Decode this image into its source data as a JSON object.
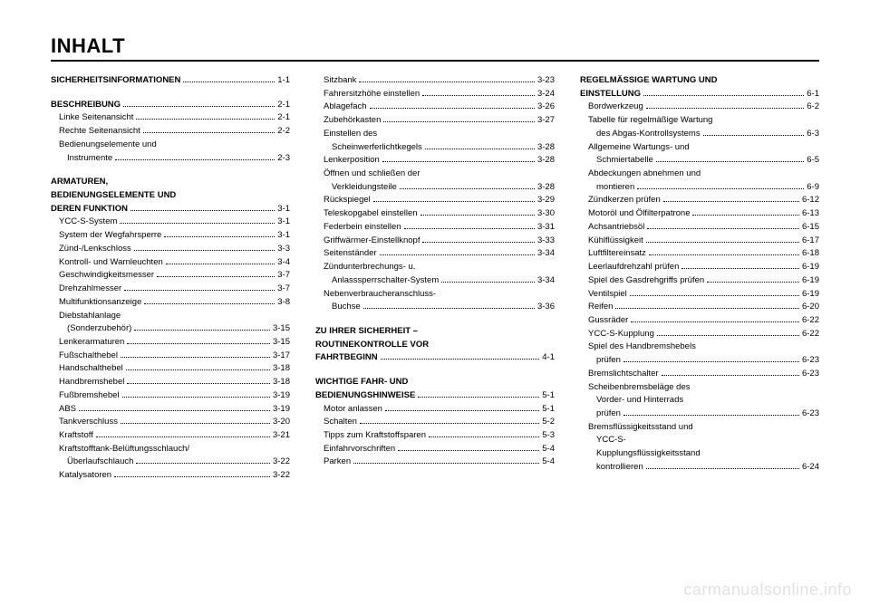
{
  "title": "INHALT",
  "watermark": "carmanualsonline.info",
  "columns": [
    [
      {
        "label": "SICHERHEITSINFORMATIONEN",
        "page": "1-1",
        "bold": true,
        "indent": 0
      },
      {
        "spacer": true
      },
      {
        "label": "BESCHREIBUNG",
        "page": "2-1",
        "bold": true,
        "indent": 0
      },
      {
        "label": "Linke Seitenansicht",
        "page": "2-1",
        "indent": 1
      },
      {
        "label": "Rechte Seitenansicht",
        "page": "2-2",
        "indent": 1
      },
      {
        "label": "Bedienungselemente und",
        "nopage": true,
        "indent": 1
      },
      {
        "label": "Instrumente",
        "page": "2-3",
        "indent": 2
      },
      {
        "spacer": true
      },
      {
        "label": "ARMATUREN,",
        "nopage": true,
        "bold": true,
        "indent": 0
      },
      {
        "label": "BEDIENUNGSELEMENTE UND",
        "nopage": true,
        "bold": true,
        "indent": 0
      },
      {
        "label": "DEREN FUNKTION",
        "page": "3-1",
        "bold": true,
        "indent": 0
      },
      {
        "label": "YCC-S-System",
        "page": "3-1",
        "indent": 1
      },
      {
        "label": "System der Wegfahrsperre",
        "page": "3-1",
        "indent": 1
      },
      {
        "label": "Zünd-/Lenkschloss",
        "page": "3-3",
        "indent": 1
      },
      {
        "label": "Kontroll- und Warnleuchten",
        "page": "3-4",
        "indent": 1
      },
      {
        "label": "Geschwindigkeitsmesser",
        "page": "3-7",
        "indent": 1
      },
      {
        "label": "Drehzahlmesser",
        "page": "3-7",
        "indent": 1
      },
      {
        "label": "Multifunktionsanzeige",
        "page": "3-8",
        "indent": 1
      },
      {
        "label": "Diebstahlanlage",
        "nopage": true,
        "indent": 1
      },
      {
        "label": "(Sonderzubehör)",
        "page": "3-15",
        "indent": 2
      },
      {
        "label": "Lenkerarmaturen",
        "page": "3-15",
        "indent": 1
      },
      {
        "label": "Fußschalthebel",
        "page": "3-17",
        "indent": 1
      },
      {
        "label": "Handschalthebel",
        "page": "3-18",
        "indent": 1
      },
      {
        "label": "Handbremshebel",
        "page": "3-18",
        "indent": 1
      },
      {
        "label": "Fußbremshebel",
        "page": "3-19",
        "indent": 1
      },
      {
        "label": "ABS",
        "page": "3-19",
        "indent": 1
      },
      {
        "label": "Tankverschluss",
        "page": "3-20",
        "indent": 1
      },
      {
        "label": "Kraftstoff",
        "page": "3-21",
        "indent": 1
      },
      {
        "label": "Kraftstofftank-Belüftungsschlauch/",
        "nopage": true,
        "indent": 1
      },
      {
        "label": "Überlaufschlauch",
        "page": "3-22",
        "indent": 2
      },
      {
        "label": "Katalysatoren",
        "page": "3-22",
        "indent": 1
      }
    ],
    [
      {
        "label": "Sitzbank",
        "page": "3-23",
        "indent": 1
      },
      {
        "label": "Fahrersitzhöhe einstellen",
        "page": "3-24",
        "indent": 1
      },
      {
        "label": "Ablagefach",
        "page": "3-26",
        "indent": 1
      },
      {
        "label": "Zubehörkasten",
        "page": "3-27",
        "indent": 1
      },
      {
        "label": "Einstellen des",
        "nopage": true,
        "indent": 1
      },
      {
        "label": "Scheinwerferlichtkegels",
        "page": "3-28",
        "indent": 2
      },
      {
        "label": "Lenkerposition",
        "page": "3-28",
        "indent": 1
      },
      {
        "label": "Öffnen und schließen der",
        "nopage": true,
        "indent": 1
      },
      {
        "label": "Verkleidungsteile",
        "page": "3-28",
        "indent": 2
      },
      {
        "label": "Rückspiegel",
        "page": "3-29",
        "indent": 1
      },
      {
        "label": "Teleskopgabel einstellen",
        "page": "3-30",
        "indent": 1
      },
      {
        "label": "Federbein einstellen",
        "page": "3-31",
        "indent": 1
      },
      {
        "label": "Griffwärmer-Einstellknopf",
        "page": "3-33",
        "indent": 1
      },
      {
        "label": "Seitenständer",
        "page": "3-34",
        "indent": 1
      },
      {
        "label": "Zündunterbrechungs- u.",
        "nopage": true,
        "indent": 1
      },
      {
        "label": "Anlasssperrschalter-System",
        "page": "3-34",
        "indent": 2
      },
      {
        "label": "Nebenverbraucheranschluss-",
        "nopage": true,
        "indent": 1
      },
      {
        "label": "Buchse",
        "page": "3-36",
        "indent": 2
      },
      {
        "spacer": true
      },
      {
        "label": "ZU IHRER SICHERHEIT –",
        "nopage": true,
        "bold": true,
        "indent": 0
      },
      {
        "label": "ROUTINEKONTROLLE VOR",
        "nopage": true,
        "bold": true,
        "indent": 0
      },
      {
        "label": "FAHRTBEGINN",
        "page": "4-1",
        "bold": true,
        "indent": 0
      },
      {
        "spacer": true
      },
      {
        "label": "WICHTIGE FAHR- UND",
        "nopage": true,
        "bold": true,
        "indent": 0
      },
      {
        "label": "BEDIENUNGSHINWEISE",
        "page": "5-1",
        "bold": true,
        "indent": 0
      },
      {
        "label": "Motor anlassen",
        "page": "5-1",
        "indent": 1
      },
      {
        "label": "Schalten",
        "page": "5-2",
        "indent": 1
      },
      {
        "label": "Tipps zum Kraftstoffsparen",
        "page": "5-3",
        "indent": 1
      },
      {
        "label": "Einfahrvorschriften",
        "page": "5-4",
        "indent": 1
      },
      {
        "label": "Parken",
        "page": "5-4",
        "indent": 1
      }
    ],
    [
      {
        "label": "REGELMÄSSIGE WARTUNG UND",
        "nopage": true,
        "bold": true,
        "indent": 0
      },
      {
        "label": "EINSTELLUNG",
        "page": "6-1",
        "bold": true,
        "indent": 0
      },
      {
        "label": "Bordwerkzeug",
        "page": "6-2",
        "indent": 1
      },
      {
        "label": "Tabelle für regelmäßige Wartung",
        "nopage": true,
        "indent": 1
      },
      {
        "label": "des Abgas-Kontrollsystems",
        "page": "6-3",
        "indent": 2
      },
      {
        "label": "Allgemeine Wartungs- und",
        "nopage": true,
        "indent": 1
      },
      {
        "label": "Schmiertabelle",
        "page": "6-5",
        "indent": 2
      },
      {
        "label": "Abdeckungen abnehmen und",
        "nopage": true,
        "indent": 1
      },
      {
        "label": "montieren",
        "page": "6-9",
        "indent": 2
      },
      {
        "label": "Zündkerzen prüfen",
        "page": "6-12",
        "indent": 1
      },
      {
        "label": "Motoröl und Ölfilterpatrone",
        "page": "6-13",
        "indent": 1
      },
      {
        "label": "Achsantriebsöl",
        "page": "6-15",
        "indent": 1
      },
      {
        "label": "Kühlflüssigkeit",
        "page": "6-17",
        "indent": 1
      },
      {
        "label": "Luftfiltereinsatz",
        "page": "6-18",
        "indent": 1
      },
      {
        "label": "Leerlaufdrehzahl prüfen",
        "page": "6-19",
        "indent": 1
      },
      {
        "label": "Spiel des Gasdrehgriffs prüfen",
        "page": "6-19",
        "indent": 1
      },
      {
        "label": "Ventilspiel",
        "page": "6-19",
        "indent": 1
      },
      {
        "label": "Reifen",
        "page": "6-20",
        "indent": 1
      },
      {
        "label": "Gussräder",
        "page": "6-22",
        "indent": 1
      },
      {
        "label": "YCC-S-Kupplung",
        "page": "6-22",
        "indent": 1
      },
      {
        "label": "Spiel des Handbremshebels",
        "nopage": true,
        "indent": 1
      },
      {
        "label": "prüfen",
        "page": "6-23",
        "indent": 2
      },
      {
        "label": "Bremslichtschalter",
        "page": "6-23",
        "indent": 1
      },
      {
        "label": "Scheibenbremsbeläge des",
        "nopage": true,
        "indent": 1
      },
      {
        "label": "Vorder- und Hinterrads",
        "nopage": true,
        "indent": 2
      },
      {
        "label": "prüfen",
        "page": "6-23",
        "indent": 2
      },
      {
        "label": "Bremsflüssigkeitsstand und",
        "nopage": true,
        "indent": 1
      },
      {
        "label": "YCC-S-",
        "nopage": true,
        "indent": 2
      },
      {
        "label": "Kupplungsflüssigkeitsstand",
        "nopage": true,
        "indent": 2
      },
      {
        "label": "kontrollieren",
        "page": "6-24",
        "indent": 2
      }
    ]
  ]
}
